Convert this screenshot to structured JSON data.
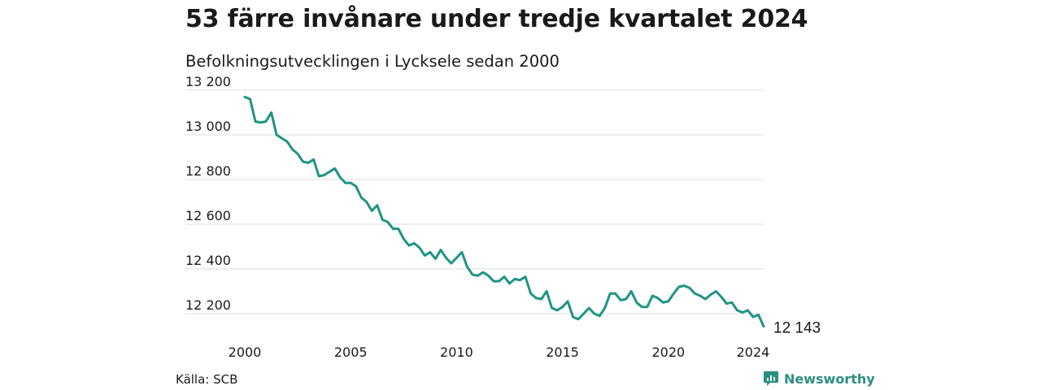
{
  "header": {
    "title": "53 färre invånare under tredje kvartalet 2024",
    "subtitle": "Befolkningsutvecklingen i Lycksele sedan 2000"
  },
  "footer": {
    "source": "Källa: SCB",
    "brand": "Newsworthy"
  },
  "colors": {
    "line": "#1f9484",
    "grid": "#dddddd",
    "brand": "#2a8f80"
  },
  "chart_data": {
    "type": "line",
    "title": "53 färre invånare under tredje kvartalet 2024",
    "subtitle": "Befolkningsutvecklingen i Lycksele sedan 2000",
    "xlabel": "",
    "ylabel": "",
    "x_ticks": [
      {
        "value": 2000,
        "label": "2000"
      },
      {
        "value": 2005,
        "label": "2005"
      },
      {
        "value": 2010,
        "label": "2010"
      },
      {
        "value": 2015,
        "label": "2015"
      },
      {
        "value": 2020,
        "label": "2020"
      },
      {
        "value": 2024,
        "label": "2024"
      }
    ],
    "y_ticks": [
      {
        "value": 12200,
        "label": "12 200"
      },
      {
        "value": 12400,
        "label": "12 400"
      },
      {
        "value": 12600,
        "label": "12 600"
      },
      {
        "value": 12800,
        "label": "12 800"
      },
      {
        "value": 13000,
        "label": "13 000"
      },
      {
        "value": 13200,
        "label": "13 200"
      }
    ],
    "xlim": [
      2000,
      2024.5
    ],
    "ylim": [
      12150,
      13200
    ],
    "grid": true,
    "end_label": "12 143",
    "series": [
      {
        "values": [
          {
            "x": 2000.0,
            "y": 13170
          },
          {
            "x": 2000.25,
            "y": 13160
          },
          {
            "x": 2000.5,
            "y": 13060
          },
          {
            "x": 2000.75,
            "y": 13055
          },
          {
            "x": 2001.0,
            "y": 13060
          },
          {
            "x": 2001.25,
            "y": 13100
          },
          {
            "x": 2001.5,
            "y": 13000
          },
          {
            "x": 2001.75,
            "y": 12985
          },
          {
            "x": 2002.0,
            "y": 12970
          },
          {
            "x": 2002.25,
            "y": 12935
          },
          {
            "x": 2002.5,
            "y": 12915
          },
          {
            "x": 2002.75,
            "y": 12880
          },
          {
            "x": 2003.0,
            "y": 12875
          },
          {
            "x": 2003.25,
            "y": 12890
          },
          {
            "x": 2003.5,
            "y": 12815
          },
          {
            "x": 2003.75,
            "y": 12820
          },
          {
            "x": 2004.0,
            "y": 12835
          },
          {
            "x": 2004.25,
            "y": 12850
          },
          {
            "x": 2004.5,
            "y": 12810
          },
          {
            "x": 2004.75,
            "y": 12785
          },
          {
            "x": 2005.0,
            "y": 12785
          },
          {
            "x": 2005.25,
            "y": 12770
          },
          {
            "x": 2005.5,
            "y": 12720
          },
          {
            "x": 2005.75,
            "y": 12700
          },
          {
            "x": 2006.0,
            "y": 12660
          },
          {
            "x": 2006.25,
            "y": 12685
          },
          {
            "x": 2006.5,
            "y": 12620
          },
          {
            "x": 2006.75,
            "y": 12610
          },
          {
            "x": 2007.0,
            "y": 12580
          },
          {
            "x": 2007.25,
            "y": 12580
          },
          {
            "x": 2007.5,
            "y": 12535
          },
          {
            "x": 2007.75,
            "y": 12505
          },
          {
            "x": 2008.0,
            "y": 12515
          },
          {
            "x": 2008.25,
            "y": 12495
          },
          {
            "x": 2008.5,
            "y": 12460
          },
          {
            "x": 2008.75,
            "y": 12475
          },
          {
            "x": 2009.0,
            "y": 12445
          },
          {
            "x": 2009.25,
            "y": 12485
          },
          {
            "x": 2009.5,
            "y": 12450
          },
          {
            "x": 2009.75,
            "y": 12425
          },
          {
            "x": 2010.0,
            "y": 12450
          },
          {
            "x": 2010.25,
            "y": 12475
          },
          {
            "x": 2010.5,
            "y": 12410
          },
          {
            "x": 2010.75,
            "y": 12375
          },
          {
            "x": 2011.0,
            "y": 12370
          },
          {
            "x": 2011.25,
            "y": 12385
          },
          {
            "x": 2011.5,
            "y": 12370
          },
          {
            "x": 2011.75,
            "y": 12345
          },
          {
            "x": 2012.0,
            "y": 12345
          },
          {
            "x": 2012.25,
            "y": 12365
          },
          {
            "x": 2012.5,
            "y": 12335
          },
          {
            "x": 2012.75,
            "y": 12355
          },
          {
            "x": 2013.0,
            "y": 12350
          },
          {
            "x": 2013.25,
            "y": 12365
          },
          {
            "x": 2013.5,
            "y": 12290
          },
          {
            "x": 2013.75,
            "y": 12270
          },
          {
            "x": 2014.0,
            "y": 12265
          },
          {
            "x": 2014.25,
            "y": 12300
          },
          {
            "x": 2014.5,
            "y": 12225
          },
          {
            "x": 2014.75,
            "y": 12215
          },
          {
            "x": 2015.0,
            "y": 12230
          },
          {
            "x": 2015.25,
            "y": 12255
          },
          {
            "x": 2015.5,
            "y": 12185
          },
          {
            "x": 2015.75,
            "y": 12175
          },
          {
            "x": 2016.0,
            "y": 12200
          },
          {
            "x": 2016.25,
            "y": 12225
          },
          {
            "x": 2016.5,
            "y": 12200
          },
          {
            "x": 2016.75,
            "y": 12190
          },
          {
            "x": 2017.0,
            "y": 12225
          },
          {
            "x": 2017.25,
            "y": 12290
          },
          {
            "x": 2017.5,
            "y": 12290
          },
          {
            "x": 2017.75,
            "y": 12260
          },
          {
            "x": 2018.0,
            "y": 12265
          },
          {
            "x": 2018.25,
            "y": 12300
          },
          {
            "x": 2018.5,
            "y": 12250
          },
          {
            "x": 2018.75,
            "y": 12230
          },
          {
            "x": 2019.0,
            "y": 12230
          },
          {
            "x": 2019.25,
            "y": 12280
          },
          {
            "x": 2019.5,
            "y": 12270
          },
          {
            "x": 2019.75,
            "y": 12250
          },
          {
            "x": 2020.0,
            "y": 12255
          },
          {
            "x": 2020.25,
            "y": 12290
          },
          {
            "x": 2020.5,
            "y": 12320
          },
          {
            "x": 2020.75,
            "y": 12325
          },
          {
            "x": 2021.0,
            "y": 12315
          },
          {
            "x": 2021.25,
            "y": 12290
          },
          {
            "x": 2021.5,
            "y": 12280
          },
          {
            "x": 2021.75,
            "y": 12265
          },
          {
            "x": 2022.0,
            "y": 12285
          },
          {
            "x": 2022.25,
            "y": 12300
          },
          {
            "x": 2022.5,
            "y": 12275
          },
          {
            "x": 2022.75,
            "y": 12245
          },
          {
            "x": 2023.0,
            "y": 12250
          },
          {
            "x": 2023.25,
            "y": 12215
          },
          {
            "x": 2023.5,
            "y": 12205
          },
          {
            "x": 2023.75,
            "y": 12215
          },
          {
            "x": 2024.0,
            "y": 12185
          },
          {
            "x": 2024.25,
            "y": 12195
          },
          {
            "x": 2024.5,
            "y": 12143
          }
        ]
      }
    ]
  }
}
